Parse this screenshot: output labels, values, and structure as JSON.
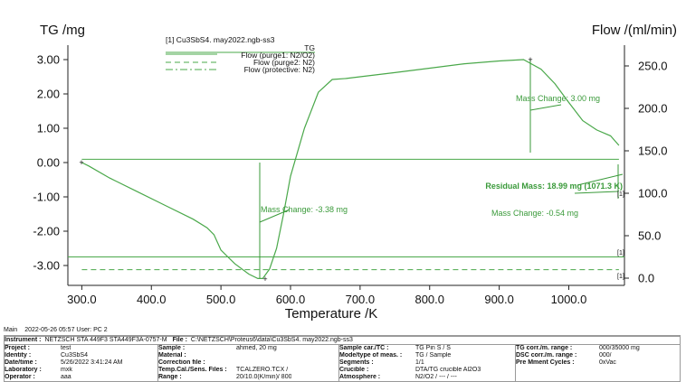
{
  "chart_data": {
    "type": "line",
    "left_axis_label": "TG /mg",
    "right_axis_label": "Flow /(ml/min)",
    "xlabel": "Temperature /K",
    "xlim": [
      280,
      1080
    ],
    "ylim_left": [
      -3.4,
      3.4
    ],
    "ylim_right": [
      0,
      283
    ],
    "x_ticks": [
      "300.0",
      "400.0",
      "500.0",
      "600.0",
      "700.0",
      "800.0",
      "900.0",
      "1000.0"
    ],
    "x_tick_values": [
      300,
      400,
      500,
      600,
      700,
      800,
      900,
      1000
    ],
    "left_ticks": [
      "3.00",
      "2.00",
      "1.00",
      "0.00",
      "-1.00",
      "-2.00",
      "-3.00"
    ],
    "left_tick_values": [
      3,
      2,
      1,
      0,
      -1,
      -2,
      -3
    ],
    "right_ticks": [
      "250.0",
      "200.0",
      "150.0",
      "100.0",
      "50.0",
      "0.0"
    ],
    "right_tick_values": [
      250,
      200,
      150,
      100,
      50,
      0
    ],
    "sample_title": "[1] Cu3SbS4.  may2022.ngb-ss3",
    "legend": [
      {
        "label": "TG",
        "style": "solid"
      },
      {
        "label": "Flow (purge1: N2/O2)",
        "style": "solid"
      },
      {
        "label": "Flow (purge2: N2)",
        "style": "dashed"
      },
      {
        "label": "Flow (protective: N2)",
        "style": "dashdot"
      }
    ],
    "series": [
      {
        "name": "TG",
        "axis": "left",
        "x": [
          300,
          310,
          340,
          380,
          420,
          460,
          480,
          490,
          500,
          520,
          540,
          553,
          560,
          570,
          580,
          590,
          600,
          620,
          640,
          660,
          680,
          700,
          750,
          800,
          850,
          900,
          935,
          960,
          980,
          1000,
          1020,
          1040,
          1060,
          1072
        ],
        "y": [
          0.0,
          -0.1,
          -0.45,
          -0.85,
          -1.25,
          -1.65,
          -1.9,
          -2.1,
          -2.55,
          -2.95,
          -3.25,
          -3.38,
          -3.38,
          -3.1,
          -2.5,
          -1.5,
          -0.4,
          1.0,
          2.05,
          2.42,
          2.45,
          2.5,
          2.62,
          2.75,
          2.88,
          2.96,
          3.0,
          2.72,
          2.3,
          1.75,
          1.22,
          0.95,
          0.78,
          0.5
        ]
      },
      {
        "name": "Flow (purge1: N2/O2)",
        "axis": "right",
        "x": [
          300,
          1072
        ],
        "y": [
          140,
          140
        ]
      },
      {
        "name": "Flow (purge2: N2)",
        "axis": "right",
        "x": [
          300,
          1072
        ],
        "y": [
          10,
          10
        ]
      },
      {
        "name": "Flow (protective: N2)",
        "axis": "right",
        "x": [
          300,
          1072
        ],
        "y": [
          25,
          25
        ]
      }
    ],
    "annotations": [
      {
        "text": "Mass Change: 3.00 mg"
      },
      {
        "text": "Mass Change: -3.38 mg"
      },
      {
        "text": "Residual Mass: 18.99 mg (1071.3 K)"
      },
      {
        "text": "Mass Change: -0.54 mg"
      }
    ],
    "curve_tags": [
      "[1]",
      "[1]",
      "[1]"
    ],
    "grid": false
  },
  "footer": {
    "main_label": "Main",
    "datetime_user": "2022-05-26 05:57   User: PC 2",
    "instrument_label": "Instrument :",
    "instrument_value": "NETZSCH STA 449F3 STA449F3A-0757-M",
    "file_label": "File :",
    "file_value": "C:\\NETZSCH\\Proteus6\\data\\Cu3SbS4.  may2022.ngb-ss3",
    "col1": [
      {
        "k": "Project :",
        "v": "test"
      },
      {
        "k": "Identity :",
        "v": "Cu3SbS4"
      },
      {
        "k": "Date/time :",
        "v": "5/26/2022 3:41:24 AM"
      },
      {
        "k": "Laboratory :",
        "v": "mxk"
      },
      {
        "k": "Operator :",
        "v": "aaa"
      }
    ],
    "col2": [
      {
        "k": "Sample :",
        "v": "ahmed, 20 mg"
      },
      {
        "k": "Material :",
        "v": ""
      },
      {
        "k": "Correction file :",
        "v": ""
      },
      {
        "k": "Temp.Cal./Sens. Files :",
        "v": "TCALZERO.TCX /"
      },
      {
        "k": "Range :",
        "v": "20/10.0(K/min)/ 800"
      }
    ],
    "col3": [
      {
        "k": "Sample car./TC :",
        "v": "TG Pin S / S"
      },
      {
        "k": "Mode/type of meas. :",
        "v": "TG / Sample"
      },
      {
        "k": "Segments :",
        "v": "1/1"
      },
      {
        "k": "Crucible :",
        "v": "DTA/TG crucible Al2O3"
      },
      {
        "k": "Atmosphere :",
        "v": "N2/O2 / --- / ---"
      }
    ],
    "col4": [
      {
        "k": "TG corr./m. range :",
        "v": "000/35000 mg"
      },
      {
        "k": "DSC corr./m. range :",
        "v": "000/"
      },
      {
        "k": "Pre Mment Cycles :",
        "v": "0xVac"
      },
      {
        "k": "",
        "v": ""
      },
      {
        "k": "",
        "v": ""
      }
    ]
  },
  "colors": {
    "tg": "#4aa84a",
    "flow": "#4aa84a",
    "annotation": "#3a9a3a",
    "axis": "#222222"
  }
}
